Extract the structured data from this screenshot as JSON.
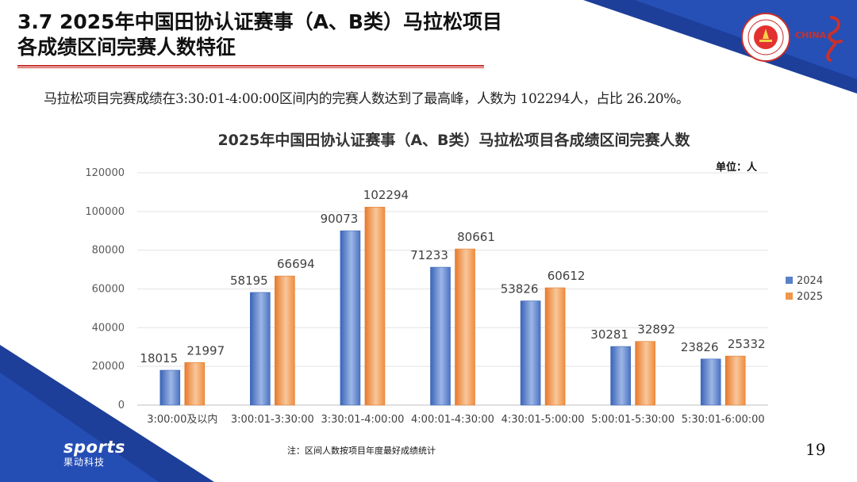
{
  "slide": {
    "title_line1": "3.7 2025年中国田协认证赛事（A、B类）马拉松项目",
    "title_line2": "各成绩区间完赛人数特征",
    "summary": "马拉松项目完赛成绩在3:30:01-4:00:00区间内的完赛人数达到了最高峰，人数为 102294人，占比 26.20%。",
    "unit_label": "单位：人",
    "note": "注：区间人数按项目年度最好成绩统计",
    "page_number": "19",
    "brand_word": "sports",
    "brand_sub": "果动科技",
    "logo_china_text": "CHINA",
    "colors": {
      "accent_red": "#c9302c",
      "corner_blue": "#1d3f9a",
      "series_2024": "#5a80c9",
      "series_2025": "#f0964a"
    }
  },
  "chart_data": {
    "type": "bar",
    "title": "2025年中国田协认证赛事（A、B类）马拉松项目各成绩区间完赛人数",
    "xlabel": "",
    "ylabel": "",
    "ylim": [
      0,
      120000
    ],
    "yticks": [
      "0",
      "20000",
      "40000",
      "60000",
      "80000",
      "100000",
      "120000"
    ],
    "grid": true,
    "legend_position": "right",
    "categories": [
      "3:00:00及以内",
      "3:00:01-3:30:00",
      "3:30:01-4:00:00",
      "4:00:01-4:30:00",
      "4:30:01-5:00:00",
      "5:00:01-5:30:00",
      "5:30:01-6:00:00"
    ],
    "series": [
      {
        "name": "2024",
        "values": [
          18015,
          58195,
          90073,
          71233,
          53826,
          30281,
          23826
        ],
        "labels": [
          "18015",
          "58195",
          "90073",
          "71233",
          "53826",
          "30281",
          "23826"
        ]
      },
      {
        "name": "2025",
        "values": [
          21997,
          66694,
          102294,
          80661,
          60612,
          32892,
          25332
        ],
        "labels": [
          "21997",
          "66694",
          "102294",
          "80661",
          "60612",
          "32892",
          "25332"
        ]
      }
    ]
  }
}
